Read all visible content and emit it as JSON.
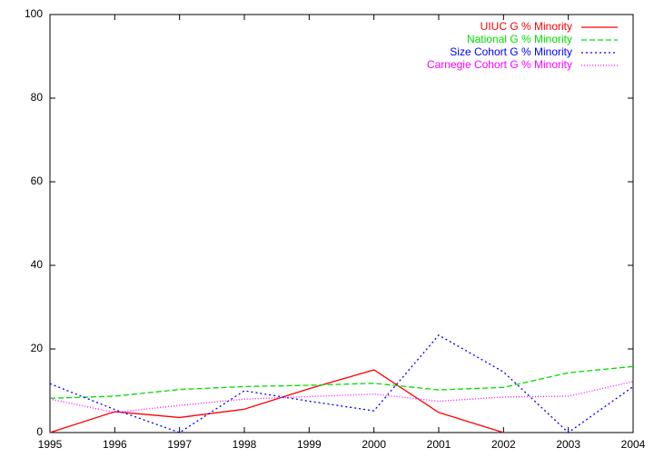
{
  "chart_data": {
    "type": "line",
    "x": [
      1995,
      1996,
      1997,
      1998,
      1999,
      2000,
      2001,
      2002,
      2003,
      2004
    ],
    "series": [
      {
        "name": "UIUC G % Minority",
        "color": "#ff0000",
        "dash": "solid",
        "values": [
          0,
          5,
          3.6,
          5.6,
          10.5,
          15,
          4.8,
          0,
          null,
          null
        ]
      },
      {
        "name": "National G % Minority",
        "color": "#00dd00",
        "dash": "dashed",
        "values": [
          8.2,
          8.7,
          10.3,
          11,
          11.3,
          11.8,
          10.2,
          10.8,
          14.3,
          15.8
        ]
      },
      {
        "name": "Size Cohort G % Minority",
        "color": "#0000ff",
        "dash": "dotted",
        "values": [
          11.7,
          5.5,
          0,
          10,
          7.5,
          5.2,
          23.3,
          14.5,
          0,
          11
        ]
      },
      {
        "name": "Carnegie Cohort G % Minority",
        "color": "#ff00ff",
        "dash": "fine-dotted",
        "values": [
          8,
          4.8,
          6.5,
          8,
          8.6,
          9.2,
          7.5,
          8.5,
          8.7,
          12.2
        ]
      }
    ],
    "xlim": [
      1995,
      2004
    ],
    "xticks": [
      1995,
      1996,
      1997,
      1998,
      1999,
      2000,
      2001,
      2002,
      2003,
      2004
    ],
    "ylim": [
      0,
      100
    ],
    "yticks": [
      0,
      20,
      40,
      60,
      80,
      100
    ],
    "legend": "top-right"
  }
}
